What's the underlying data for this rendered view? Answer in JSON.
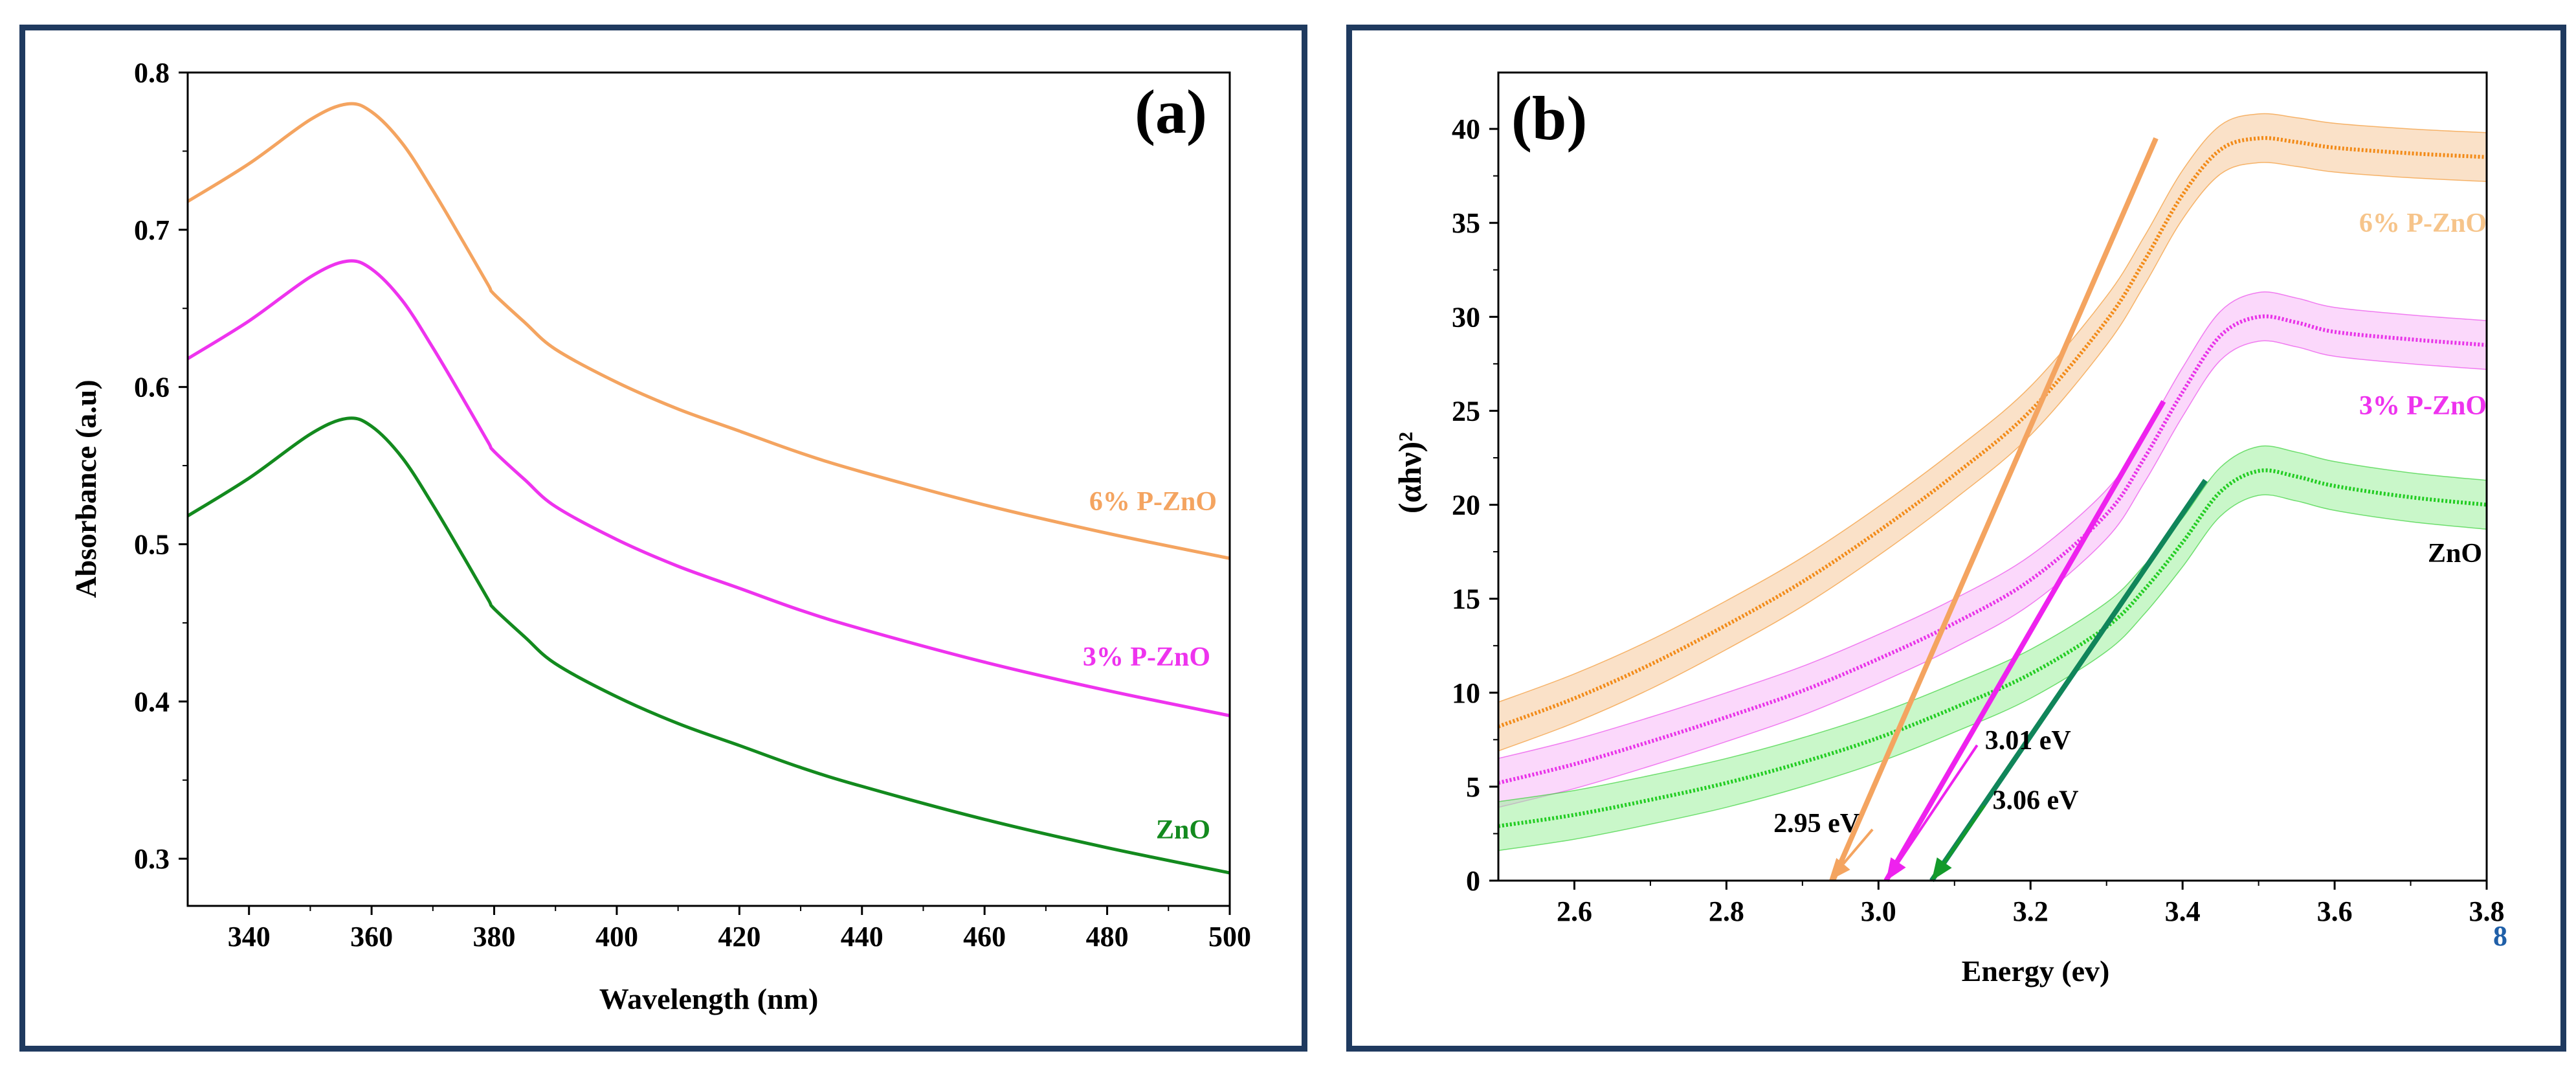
{
  "chart_data": [
    {
      "type": "line",
      "panel": "(a)",
      "xlabel": "Wavelength (nm)",
      "ylabel": "Absorbance (a.u)",
      "xlim": [
        330,
        500
      ],
      "ylim": [
        0.27,
        0.8
      ],
      "xticks": [
        340,
        360,
        380,
        400,
        420,
        440,
        460,
        480,
        500
      ],
      "yticks": [
        0.3,
        0.4,
        0.5,
        0.6,
        0.7,
        0.8
      ],
      "series": [
        {
          "name": "6% P-ZnO",
          "color": "#f4a460",
          "x": [
            330,
            340,
            350,
            356,
            360,
            365,
            370,
            375,
            379,
            380,
            385,
            390,
            400,
            410,
            420,
            430,
            440,
            460,
            480,
            500
          ],
          "values": [
            0.718,
            0.742,
            0.77,
            0.78,
            0.775,
            0.755,
            0.725,
            0.692,
            0.665,
            0.659,
            0.641,
            0.624,
            0.603,
            0.586,
            0.572,
            0.558,
            0.546,
            0.525,
            0.507,
            0.491
          ]
        },
        {
          "name": "3% P-ZnO",
          "color": "#ee33ee",
          "x": [
            330,
            340,
            350,
            356,
            360,
            365,
            370,
            375,
            379,
            380,
            385,
            390,
            400,
            410,
            420,
            430,
            440,
            460,
            480,
            500
          ],
          "values": [
            0.618,
            0.642,
            0.67,
            0.68,
            0.675,
            0.655,
            0.625,
            0.592,
            0.565,
            0.559,
            0.541,
            0.524,
            0.503,
            0.486,
            0.472,
            0.458,
            0.446,
            0.425,
            0.407,
            0.391
          ]
        },
        {
          "name": "ZnO",
          "color": "#138a1e",
          "x": [
            330,
            340,
            350,
            356,
            360,
            365,
            370,
            375,
            379,
            380,
            385,
            390,
            400,
            410,
            420,
            430,
            440,
            460,
            480,
            500
          ],
          "values": [
            0.518,
            0.542,
            0.57,
            0.58,
            0.575,
            0.555,
            0.525,
            0.492,
            0.465,
            0.459,
            0.441,
            0.424,
            0.403,
            0.386,
            0.372,
            0.358,
            0.346,
            0.325,
            0.307,
            0.291
          ]
        }
      ]
    },
    {
      "type": "line",
      "panel": "(b)",
      "xlabel": "Energy (ev)",
      "ylabel": "(αhν)²",
      "xlim": [
        2.5,
        3.8
      ],
      "ylim": [
        0,
        43
      ],
      "xticks": [
        2.6,
        2.8,
        3.0,
        3.2,
        3.4,
        3.6,
        3.8
      ],
      "yticks": [
        0,
        5,
        10,
        15,
        20,
        25,
        30,
        35,
        40
      ],
      "series": [
        {
          "name": "6% P-ZnO",
          "color": "#f28a17",
          "band_color": "#f6c89a",
          "x": [
            2.5,
            2.6,
            2.7,
            2.8,
            2.9,
            3.0,
            3.1,
            3.2,
            3.3,
            3.35,
            3.4,
            3.45,
            3.5,
            3.55,
            3.6,
            3.7,
            3.8
          ],
          "values": [
            8.2,
            9.7,
            11.5,
            13.6,
            15.9,
            18.6,
            21.6,
            25.0,
            29.8,
            33.0,
            36.5,
            38.9,
            39.5,
            39.3,
            39.0,
            38.7,
            38.5
          ],
          "band_halfwidth": 1.3
        },
        {
          "name": "3% P-ZnO",
          "color": "#e832e8",
          "band_color": "#f7b8f7",
          "x": [
            2.5,
            2.6,
            2.7,
            2.8,
            2.9,
            3.0,
            3.1,
            3.2,
            3.3,
            3.35,
            3.4,
            3.45,
            3.5,
            3.55,
            3.6,
            3.7,
            3.8
          ],
          "values": [
            5.2,
            6.2,
            7.4,
            8.7,
            10.1,
            11.8,
            13.7,
            16.0,
            19.5,
            22.5,
            26.0,
            29.0,
            30.0,
            29.7,
            29.2,
            28.8,
            28.5
          ],
          "band_halfwidth": 1.3
        },
        {
          "name": "ZnO",
          "color": "#22cc22",
          "band_color": "#9cf09c",
          "x": [
            2.5,
            2.6,
            2.7,
            2.8,
            2.9,
            3.0,
            3.1,
            3.2,
            3.3,
            3.35,
            3.4,
            3.45,
            3.5,
            3.55,
            3.6,
            3.7,
            3.8
          ],
          "values": [
            2.9,
            3.5,
            4.3,
            5.2,
            6.3,
            7.6,
            9.2,
            11.0,
            13.5,
            15.5,
            18.0,
            20.7,
            21.8,
            21.5,
            21.0,
            20.4,
            20.0
          ],
          "band_halfwidth": 1.3
        }
      ],
      "tangent_lines": [
        {
          "name": "6% P-ZnO",
          "color": "#f4a460",
          "x": [
            2.94,
            3.365
          ],
          "values": [
            0,
            39.5
          ]
        },
        {
          "name": "3% P-ZnO",
          "color": "#ee22ee",
          "x": [
            3.01,
            3.375
          ],
          "values": [
            0,
            25.5
          ]
        },
        {
          "name": "ZnO",
          "color": "#10855a",
          "x": [
            3.07,
            3.43
          ],
          "values": [
            0,
            21.3
          ]
        }
      ],
      "annotations": [
        {
          "text": "2.95 eV",
          "color": "#f4a460",
          "label_x": 2.89,
          "label_y": 3.0,
          "tip_x": 2.935,
          "tip_y": 0.0
        },
        {
          "text": "3.01 eV",
          "color": "#ee22ee",
          "label_x": 3.14,
          "label_y": 7.0,
          "tip_x": 3.01,
          "tip_y": 0.0
        },
        {
          "text": "3.06 eV",
          "color": "#139a2a",
          "label_x": 3.15,
          "label_y": 3.8,
          "tip_x": 3.07,
          "tip_y": 0.0
        }
      ]
    }
  ],
  "stray_text": "8"
}
